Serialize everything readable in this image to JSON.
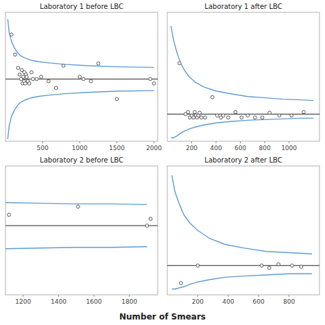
{
  "xlabel": "Number of Smears",
  "chart_data": [
    {
      "type": "line",
      "title": "Laboratory 1 before LBC",
      "center": 0.06,
      "xlim": [
        0,
        2050
      ],
      "ylim": [
        -0.22,
        0.36
      ],
      "xticks": [
        500,
        1000,
        1500,
        2000
      ],
      "tick_labels": "x",
      "grid": false,
      "series": [
        {
          "type": "line",
          "color": "#5b9bd5",
          "x": [
            30,
            50,
            80,
            120,
            160,
            200,
            260,
            340,
            450,
            600,
            800,
            1100,
            1500,
            2000
          ],
          "values": [
            0.33,
            0.27,
            0.23,
            0.2,
            0.18,
            0.165,
            0.155,
            0.145,
            0.138,
            0.132,
            0.126,
            0.12,
            0.115,
            0.112
          ]
        },
        {
          "type": "line",
          "color": "#5b9bd5",
          "x": [
            30,
            50,
            80,
            120,
            160,
            200,
            260,
            340,
            450,
            600,
            800,
            1100,
            1500,
            2000
          ],
          "values": [
            -0.21,
            -0.15,
            -0.11,
            -0.08,
            -0.06,
            -0.045,
            -0.035,
            -0.025,
            -0.018,
            -0.012,
            -0.006,
            0.0,
            0.005,
            0.008
          ]
        },
        {
          "type": "scatter",
          "color": "#444444",
          "marker": "open-circle",
          "x": [
            80,
            130,
            170,
            190,
            210,
            220,
            230,
            240,
            250,
            255,
            265,
            275,
            285,
            300,
            320,
            350,
            370,
            420,
            480,
            580,
            680,
            780,
            1000,
            1050,
            1150,
            1250,
            1500,
            1950,
            2000
          ],
          "values": [
            0.26,
            0.17,
            0.11,
            0.08,
            0.06,
            0.1,
            0.04,
            0.07,
            0.05,
            0.09,
            0.04,
            0.08,
            0.07,
            0.05,
            0.04,
            0.09,
            0.06,
            0.06,
            0.07,
            0.05,
            0.02,
            0.12,
            0.07,
            0.06,
            0.05,
            0.13,
            -0.03,
            0.06,
            0.04
          ]
        }
      ]
    },
    {
      "type": "line",
      "title": "Laboratory 1 after LBC",
      "center": 0.01,
      "xlim": [
        0,
        1250
      ],
      "ylim": [
        -0.03,
        0.16
      ],
      "xticks": [
        200,
        400,
        600,
        800,
        1000
      ],
      "tick_labels": "x",
      "grid": false,
      "series": [
        {
          "type": "line",
          "color": "#5b9bd5",
          "x": [
            30,
            50,
            80,
            110,
            140,
            180,
            230,
            300,
            400,
            520,
            660,
            800,
            950,
            1100,
            1200
          ],
          "values": [
            0.14,
            0.12,
            0.1,
            0.085,
            0.075,
            0.065,
            0.057,
            0.05,
            0.044,
            0.04,
            0.036,
            0.034,
            0.032,
            0.031,
            0.03
          ]
        },
        {
          "type": "line",
          "color": "#5b9bd5",
          "x": [
            30,
            50,
            80,
            110,
            140,
            180,
            230,
            300,
            400,
            520,
            660,
            800,
            950,
            1100,
            1200
          ],
          "values": [
            -0.025,
            -0.025,
            -0.022,
            -0.018,
            -0.015,
            -0.012,
            -0.009,
            -0.006,
            -0.003,
            -0.001,
            0.001,
            0.002,
            0.003,
            0.004,
            0.004
          ]
        },
        {
          "type": "scatter",
          "color": "#444444",
          "marker": "open-circle",
          "x": [
            100,
            150,
            170,
            185,
            200,
            215,
            225,
            235,
            245,
            255,
            265,
            280,
            310,
            370,
            410,
            440,
            460,
            500,
            560,
            610,
            660,
            720,
            780,
            840,
            920,
            1020,
            1120
          ],
          "values": [
            0.085,
            0.01,
            0.013,
            0.005,
            0.008,
            0.005,
            0.013,
            0.008,
            0.005,
            0.008,
            0.012,
            0.005,
            0.005,
            0.035,
            0.008,
            0.005,
            0.008,
            0.005,
            0.013,
            0.005,
            0.008,
            0.005,
            0.005,
            0.012,
            0.008,
            0.008,
            0.013
          ]
        }
      ]
    },
    {
      "type": "line",
      "title": "Laboratory 2 before LBC",
      "center": 0.032,
      "xlim": [
        1100,
        1960
      ],
      "ylim": [
        -0.07,
        0.12
      ],
      "xticks": [
        1200,
        1400,
        1600,
        1800
      ],
      "tick_labels": "x",
      "grid": false,
      "series": [
        {
          "type": "line",
          "color": "#5b9bd5",
          "x": [
            1100,
            1300,
            1500,
            1700,
            1900
          ],
          "values": [
            0.066,
            0.065,
            0.064,
            0.064,
            0.063
          ]
        },
        {
          "type": "line",
          "color": "#5b9bd5",
          "x": [
            1100,
            1300,
            1500,
            1700,
            1900
          ],
          "values": [
            -0.002,
            -0.001,
            0.0,
            0.0,
            0.001
          ]
        },
        {
          "type": "scatter",
          "color": "#444444",
          "marker": "open-circle",
          "x": [
            1120,
            1510,
            1900,
            1920
          ],
          "values": [
            0.048,
            0.06,
            0.032,
            0.042
          ]
        }
      ]
    },
    {
      "type": "line",
      "title": "Laboratory 2 after LBC",
      "center": 0.005,
      "xlim": [
        0,
        1000
      ],
      "ylim": [
        -0.02,
        0.09
      ],
      "xticks": [
        200,
        400,
        600,
        800
      ],
      "tick_labels": "x",
      "grid": false,
      "series": [
        {
          "type": "line",
          "color": "#5b9bd5",
          "x": [
            30,
            50,
            80,
            110,
            150,
            200,
            280,
            380,
            500,
            650,
            800,
            950
          ],
          "values": [
            0.082,
            0.068,
            0.057,
            0.048,
            0.041,
            0.035,
            0.028,
            0.023,
            0.02,
            0.017,
            0.016,
            0.015
          ]
        },
        {
          "type": "line",
          "color": "#5b9bd5",
          "x": [
            30,
            50,
            80,
            110,
            150,
            200,
            280,
            380,
            500,
            650,
            800,
            950
          ],
          "values": [
            -0.015,
            -0.015,
            -0.014,
            -0.013,
            -0.011,
            -0.009,
            -0.007,
            -0.005,
            -0.004,
            -0.003,
            -0.002,
            -0.002
          ]
        },
        {
          "type": "scatter",
          "color": "#444444",
          "marker": "open-circle",
          "x": [
            90,
            200,
            620,
            670,
            730,
            820,
            880
          ],
          "values": [
            -0.01,
            0.005,
            0.005,
            0.003,
            0.006,
            0.005,
            0.004
          ]
        }
      ]
    }
  ]
}
